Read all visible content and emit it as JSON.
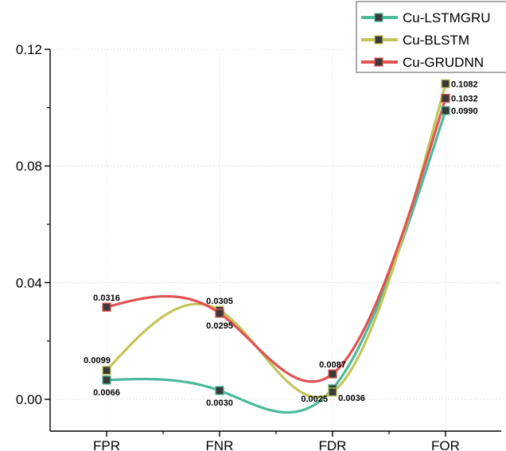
{
  "chart_data": {
    "type": "line",
    "title": "",
    "xlabel": "",
    "ylabel": "",
    "categories": [
      "FPR",
      "FNR",
      "FDR",
      "FOR"
    ],
    "ylim": [
      -0.008,
      0.12
    ],
    "yticks": [
      0.0,
      0.04,
      0.08,
      0.12
    ],
    "ytick_labels": [
      "0.00",
      "0.04",
      "0.08",
      "0.12"
    ],
    "grid": true,
    "legend_position": "top-right",
    "smoothed": true,
    "series": [
      {
        "name": "Cu-LSTMGRU",
        "color": "#4bb99a",
        "values": [
          0.0066,
          0.003,
          0.0036,
          0.099
        ],
        "labels": [
          "0.0066",
          "0.0030",
          "0.0036",
          "0.0990"
        ],
        "label_positions": [
          "below",
          "below",
          "below-right",
          "right"
        ]
      },
      {
        "name": "Cu-BLSTM",
        "color": "#c4c45a",
        "values": [
          0.0099,
          0.0305,
          0.0025,
          0.1082
        ],
        "labels": [
          "0.0099",
          "0.0305",
          "0.0025",
          "0.1082"
        ],
        "label_positions": [
          "above-left",
          "above",
          "left",
          "right"
        ]
      },
      {
        "name": "Cu-GRUDNN",
        "color": "#e15252",
        "values": [
          0.0316,
          0.0295,
          0.0087,
          0.1032
        ],
        "labels": [
          "0.0316",
          "0.0295",
          "0.0087",
          "0.1032"
        ],
        "label_positions": [
          "above",
          "below",
          "above",
          "right"
        ]
      }
    ]
  }
}
